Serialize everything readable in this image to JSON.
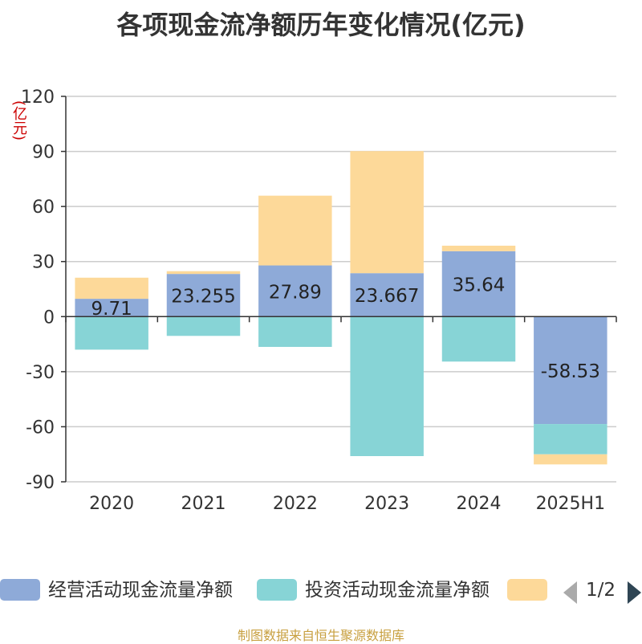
{
  "title": "各项现金流净额历年变化情况(亿元)",
  "unit_label": "(亿元)",
  "source": "制图数据来自恒生聚源数据库",
  "legend": {
    "items": [
      {
        "label": "经营活动现金流量净额",
        "color": "#8eaad8"
      },
      {
        "label": "投资活动现金流量净额",
        "color": "#87d4d6"
      },
      {
        "label": "",
        "color": "#fdd999"
      }
    ],
    "pager": "1/2"
  },
  "chart_data": {
    "type": "bar",
    "stacked": true,
    "categories": [
      "2020",
      "2021",
      "2022",
      "2023",
      "2024",
      "2025H1"
    ],
    "series": [
      {
        "name": "经营活动现金流量净额",
        "color": "#8eaad8",
        "values": [
          9.71,
          23.255,
          27.89,
          23.667,
          35.64,
          -58.53
        ],
        "labels": true
      },
      {
        "name": "投资活动现金流量净额",
        "color": "#87d4d6",
        "values": [
          -18,
          -10.5,
          -16.5,
          -76,
          -24.5,
          -16.5
        ],
        "labels": false
      },
      {
        "name": "",
        "color": "#fdd999",
        "values": [
          11.5,
          1.5,
          38,
          66.5,
          3,
          -5.5
        ],
        "labels": false
      }
    ],
    "yticks": [
      -90,
      -60,
      -30,
      0,
      30,
      60,
      90,
      120
    ],
    "ylim": [
      -90,
      120
    ],
    "grid": true,
    "legend_position": "bottom"
  }
}
